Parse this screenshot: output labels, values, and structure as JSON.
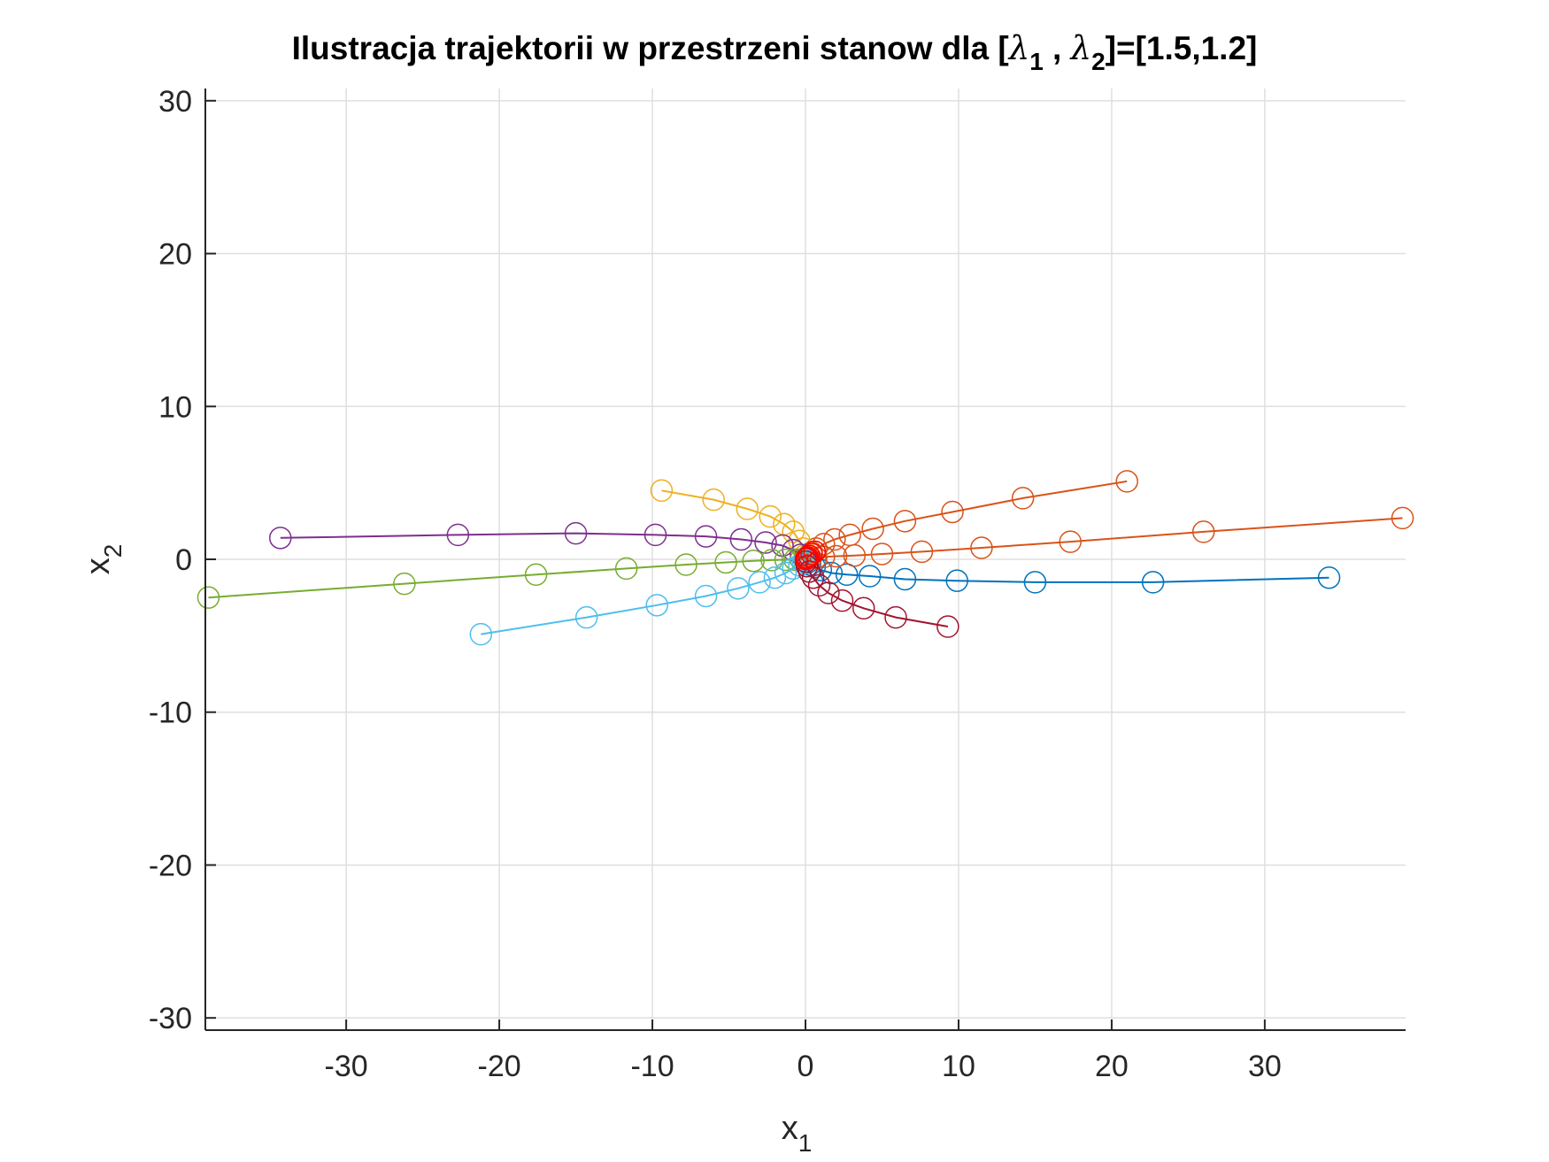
{
  "chart_data": {
    "type": "line",
    "title": {
      "prefix": "Ilustracja trajektorii w przestrzeni stanow dla [",
      "lambda": "λ",
      "sub1": "1",
      "sep": " , ",
      "sub2": "2",
      "suffix": "]=[1.5,1.2]"
    },
    "xlabel": {
      "main": "x",
      "sub": "1"
    },
    "ylabel": {
      "main": "x",
      "sub": "2"
    },
    "xlim": [
      -39.2,
      39.2
    ],
    "ylim": [
      -30.8,
      30.8
    ],
    "xticks": [
      -30,
      -20,
      -10,
      0,
      10,
      20,
      30
    ],
    "yticks": [
      -30,
      -20,
      -10,
      0,
      10,
      20,
      30
    ],
    "grid": true,
    "marker": "circle",
    "series": [
      {
        "color": "#0072BD",
        "x": [
          34.2,
          22.7,
          15.0,
          9.9,
          6.5,
          4.2,
          2.7,
          1.7,
          1.0,
          0.6,
          0.3,
          0.15,
          0.05
        ],
        "y": [
          -1.2,
          -1.5,
          -1.5,
          -1.4,
          -1.3,
          -1.1,
          -1.0,
          -0.9,
          -0.7,
          -0.5,
          -0.35,
          -0.2,
          -0.05
        ]
      },
      {
        "color": "#D95319",
        "x": [
          39.0,
          26.0,
          17.3,
          11.5,
          7.6,
          5.0,
          3.2,
          2.0,
          1.2,
          0.7,
          0.35,
          0.15,
          0.05
        ],
        "y": [
          2.7,
          1.8,
          1.15,
          0.75,
          0.5,
          0.35,
          0.25,
          0.2,
          0.15,
          0.1,
          0.07,
          0.04,
          0.01
        ]
      },
      {
        "color": "#D95319",
        "x": [
          21.0,
          14.2,
          9.6,
          6.5,
          4.4,
          2.9,
          1.9,
          1.2,
          0.7,
          0.4,
          0.2,
          0.05
        ],
        "y": [
          5.1,
          4.0,
          3.1,
          2.5,
          2.0,
          1.6,
          1.3,
          1.0,
          0.7,
          0.45,
          0.25,
          0.05
        ]
      },
      {
        "color": "#EDB120",
        "x": [
          -9.4,
          -6.0,
          -3.8,
          -2.3,
          -1.4,
          -0.8,
          -0.4,
          -0.15,
          -0.05
        ],
        "y": [
          4.5,
          3.9,
          3.3,
          2.8,
          2.3,
          1.8,
          1.2,
          0.7,
          0.25
        ]
      },
      {
        "color": "#7E2F8E",
        "x": [
          -34.3,
          -22.7,
          -15.0,
          -9.8,
          -6.5,
          -4.2,
          -2.6,
          -1.5,
          -0.8,
          -0.3,
          -0.05
        ],
        "y": [
          1.4,
          1.6,
          1.7,
          1.6,
          1.5,
          1.3,
          1.1,
          0.9,
          0.6,
          0.3,
          0.05
        ]
      },
      {
        "color": "#77AC30",
        "x": [
          -39.0,
          -26.2,
          -17.6,
          -11.7,
          -7.8,
          -5.2,
          -3.4,
          -2.2,
          -1.3,
          -0.7,
          -0.3,
          -0.05
        ],
        "y": [
          -2.5,
          -1.6,
          -1.0,
          -0.6,
          -0.35,
          -0.2,
          -0.1,
          -0.05,
          -0.03,
          -0.02,
          -0.01,
          0.0
        ]
      },
      {
        "color": "#4DBEEE",
        "x": [
          -21.2,
          -14.3,
          -9.7,
          -6.5,
          -4.4,
          -3.0,
          -2.0,
          -1.3,
          -0.8,
          -0.4,
          -0.15,
          -0.03
        ],
        "y": [
          -4.9,
          -3.8,
          -3.0,
          -2.4,
          -1.9,
          -1.5,
          -1.2,
          -0.9,
          -0.6,
          -0.4,
          -0.2,
          -0.05
        ]
      },
      {
        "color": "#A2142F",
        "x": [
          9.3,
          5.9,
          3.8,
          2.4,
          1.5,
          0.9,
          0.5,
          0.25,
          0.1,
          0.03
        ],
        "y": [
          -4.4,
          -3.8,
          -3.2,
          -2.7,
          -2.2,
          -1.7,
          -1.2,
          -0.8,
          -0.45,
          -0.15
        ]
      },
      {
        "color": "#FF0000",
        "x": [
          0.6,
          0.4,
          0.25,
          0.15,
          0.08,
          0.03
        ],
        "y": [
          0.5,
          0.35,
          0.22,
          0.12,
          0.06,
          0.02
        ]
      }
    ]
  }
}
